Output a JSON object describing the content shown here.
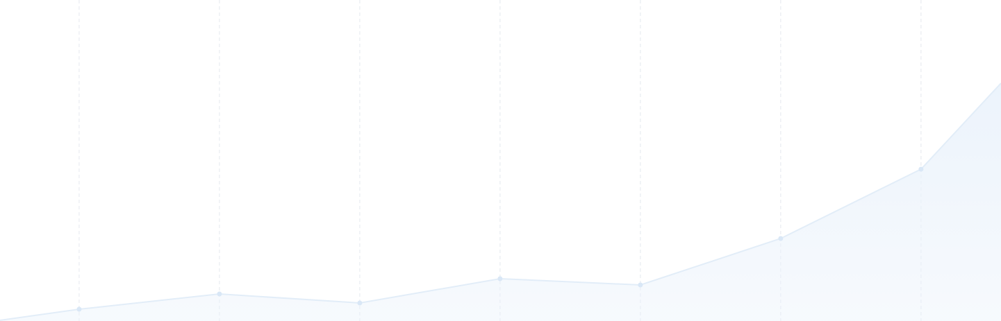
{
  "chart_data": {
    "type": "area",
    "x": [
      -0.564,
      0,
      1,
      2,
      3,
      4,
      5,
      6,
      6.57
    ],
    "series": [
      {
        "color": "#e2edf8",
        "values": [
          1,
          17,
          39,
          26,
          61,
          52,
          119,
          219,
          343
        ]
      }
    ],
    "xlim": [
      -0.564,
      6.57
    ],
    "ylim": [
      0,
      463
    ],
    "xticks": [
      0,
      1,
      2,
      3,
      4,
      5,
      6
    ],
    "grid": true,
    "fill_color": "#eaf2fb",
    "marker_color": "#d9e7f6",
    "grid_color": "#e4e8ee"
  }
}
